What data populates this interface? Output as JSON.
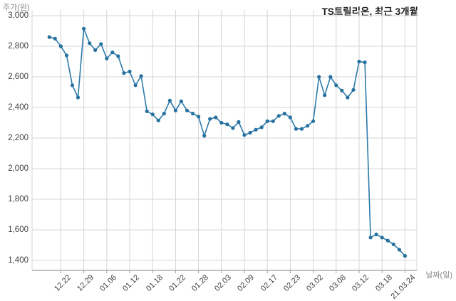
{
  "title": "TS트릴리온, 최근 3개월",
  "y_axis_label": "주가(원)",
  "x_axis_label": "날짜(일)",
  "colors": {
    "line": "#2d7aaa",
    "marker": "#26719f",
    "grid": "#d6d6d6",
    "axis": "#9e9e9e",
    "title_text": "#1f1f1f",
    "tick_text": "#404040",
    "unit_text": "#8a8a8a",
    "background": "#ffffff"
  },
  "chart_data": {
    "type": "line",
    "title": "TS트릴리온, 최근 3개월",
    "xlabel": "날짜(일)",
    "ylabel": "주가(원)",
    "ylim": [
      1400,
      3000
    ],
    "grid": true,
    "legend": false,
    "y_tick_values": [
      3000,
      2800,
      2600,
      2400,
      2200,
      2000,
      1800,
      1600,
      1400
    ],
    "y_tick_labels": [
      "3,000",
      "2,800",
      "2,600",
      "2,400",
      "2,200",
      "2,000",
      "1,800",
      "1,600",
      "1,400"
    ],
    "x_tick_labels": [
      "12.22",
      "12.29",
      "01.06",
      "01.12",
      "01.18",
      "01.22",
      "01.28",
      "02.03",
      "02.09",
      "02.17",
      "02.23",
      "03.02",
      "03.08",
      "03.12",
      "03.18",
      "21.03.24"
    ],
    "x_tick_indices": [
      2,
      6,
      10,
      14,
      18,
      22,
      26,
      30,
      34,
      38,
      42,
      46,
      50,
      54,
      58,
      62
    ],
    "series": [
      {
        "name": "주가",
        "values": [
          2860,
          2850,
          2800,
          2740,
          2545,
          2465,
          2915,
          2820,
          2775,
          2815,
          2720,
          2760,
          2735,
          2625,
          2635,
          2545,
          2605,
          2375,
          2355,
          2315,
          2360,
          2445,
          2380,
          2440,
          2380,
          2360,
          2340,
          2215,
          2325,
          2335,
          2300,
          2290,
          2265,
          2305,
          2220,
          2235,
          2255,
          2270,
          2310,
          2310,
          2345,
          2360,
          2335,
          2260,
          2260,
          2280,
          2310,
          2600,
          2480,
          2600,
          2545,
          2510,
          2465,
          2515,
          2700,
          2695,
          1550,
          1570,
          1550,
          1530,
          1505,
          1470,
          1430
        ]
      }
    ]
  }
}
